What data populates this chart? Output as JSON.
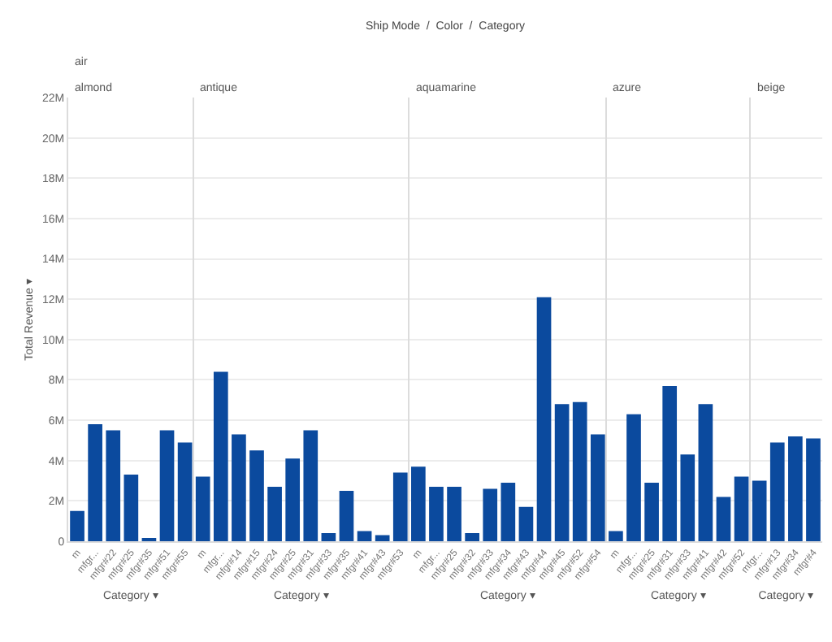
{
  "chart_data": [
    {
      "type": "bar",
      "title": "almond",
      "annotations": [
        "Ship Mode  /  Color  /  Category",
        "air"
      ],
      "ylabel": "Total Revenue ▾",
      "xlabel": "Category ▾",
      "categories": [
        "m",
        "mfgr...",
        "mfgr#22",
        "mfgr#25",
        "mfgr#35",
        "mfgr#51",
        "mfgr#55"
      ],
      "series": [
        {
          "color": "#0b4a9e",
          "values": [
            1500000,
            5800000,
            5500000,
            3300000,
            100000,
            5500000,
            4900000
          ]
        }
      ],
      "ylim": [
        0,
        22000000
      ],
      "yticks": [
        {
          "value": 0,
          "label": "0"
        },
        {
          "value": 2000000,
          "label": "2M"
        },
        {
          "value": 4000000,
          "label": "4M"
        },
        {
          "value": 6000000,
          "label": "6M"
        },
        {
          "value": 8000000,
          "label": "8M"
        },
        {
          "value": 10000000,
          "label": "10M"
        },
        {
          "value": 12000000,
          "label": "12M"
        },
        {
          "value": 14000000,
          "label": "14M"
        },
        {
          "value": 16000000,
          "label": "16M"
        },
        {
          "value": 18000000,
          "label": "18M"
        },
        {
          "value": 20000000,
          "label": "20M"
        },
        {
          "value": 22000000,
          "label": "22M"
        }
      ],
      "grid": "y"
    },
    {
      "type": "bar",
      "title": "antique",
      "xlabel": "Category ▾",
      "categories": [
        "m",
        "mfgr...",
        "mfgr#14",
        "mfgr#15",
        "mfgr#24",
        "mfgr#25",
        "mfgr#31",
        "mfgr#33",
        "mfgr#35",
        "mfgr#41",
        "mfgr#43",
        "mfgr#53"
      ],
      "series": [
        {
          "color": "#0b4a9e",
          "values": [
            3200000,
            8400000,
            5300000,
            4500000,
            2700000,
            4100000,
            5500000,
            400000,
            2500000,
            500000,
            300000,
            3400000
          ]
        }
      ],
      "ylim": [
        0,
        22000000
      ],
      "tick_labels": "x",
      "grid": "y"
    },
    {
      "type": "bar",
      "title": "aquamarine",
      "xlabel": "Category ▾",
      "categories": [
        "m",
        "mfgr...",
        "mfgr#25",
        "mfgr#32",
        "mfgr#33",
        "mfgr#34",
        "mfgr#43",
        "mfgr#44",
        "mfgr#45",
        "mfgr#52",
        "mfgr#54"
      ],
      "series": [
        {
          "color": "#0b4a9e",
          "values": [
            3700000,
            2700000,
            2700000,
            400000,
            2600000,
            2900000,
            1700000,
            12100000,
            6800000,
            6900000,
            5300000
          ]
        }
      ],
      "ylim": [
        0,
        22000000
      ],
      "tick_labels": "x",
      "grid": "y"
    },
    {
      "type": "bar",
      "title": "azure",
      "xlabel": "Category ▾",
      "categories": [
        "m",
        "mfgr...",
        "mfgr#25",
        "mfgr#31",
        "mfgr#33",
        "mfgr#41",
        "mfgr#42",
        "mfgr#52"
      ],
      "series": [
        {
          "color": "#0b4a9e",
          "values": [
            500000,
            6300000,
            2900000,
            7700000,
            4300000,
            6800000,
            2200000,
            3200000
          ]
        }
      ],
      "ylim": [
        0,
        22000000
      ],
      "tick_labels": "x",
      "grid": "y"
    },
    {
      "type": "bar",
      "title": "beige",
      "xlabel": "Category ▾",
      "categories": [
        "mfgr...",
        "mfgr#13",
        "mfgr#34",
        "mfgr#4"
      ],
      "series": [
        {
          "color": "#0b4a9e",
          "values": [
            3000000,
            4900000,
            5200000,
            5100000
          ]
        }
      ],
      "ylim": [
        0,
        22000000
      ],
      "tick_labels": "x",
      "grid": "y"
    }
  ]
}
